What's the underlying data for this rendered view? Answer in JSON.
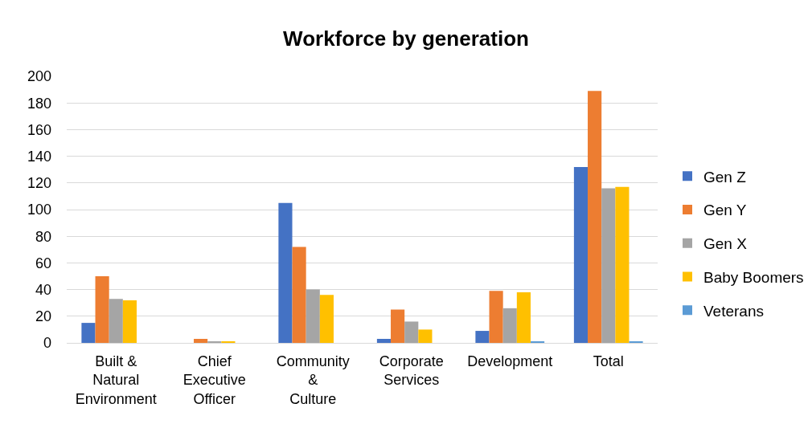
{
  "chart_data": {
    "type": "bar",
    "title": "Workforce by generation",
    "categories": [
      "Built & Natural Environment",
      "Chief Executive Officer",
      "Community & Culture",
      "Corporate Services",
      "Development",
      "Total"
    ],
    "series": [
      {
        "name": "Gen Z",
        "color": "#4472c4",
        "values": [
          15,
          0,
          105,
          3,
          9,
          132
        ]
      },
      {
        "name": "Gen Y",
        "color": "#ed7d31",
        "values": [
          50,
          3,
          72,
          25,
          39,
          189
        ]
      },
      {
        "name": "Gen X",
        "color": "#a5a5a5",
        "values": [
          33,
          1,
          40,
          16,
          26,
          116
        ]
      },
      {
        "name": "Baby Boomers",
        "color": "#ffc000",
        "values": [
          32,
          1,
          36,
          10,
          38,
          117
        ]
      },
      {
        "name": "Veterans",
        "color": "#5b9bd5",
        "values": [
          0,
          0,
          0,
          0,
          1,
          1
        ]
      }
    ],
    "ylim": [
      0,
      200
    ],
    "yticks": [
      0,
      20,
      40,
      60,
      80,
      100,
      120,
      140,
      160,
      180,
      200
    ],
    "grid": "y",
    "legend": "right"
  }
}
